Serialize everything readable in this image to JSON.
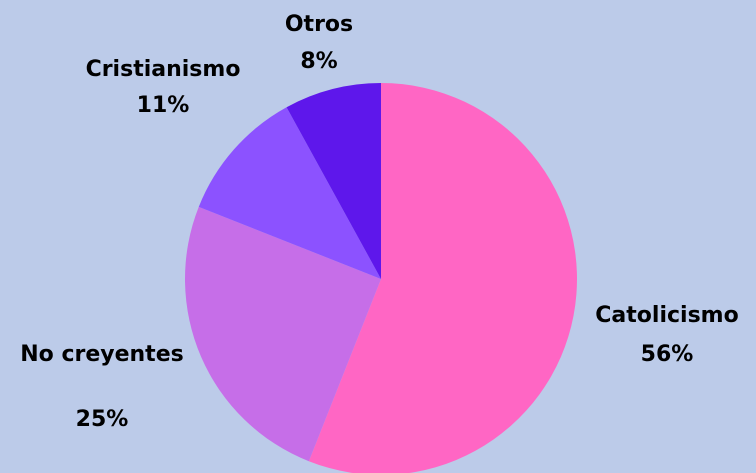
{
  "chart_data": {
    "type": "pie",
    "categories": [
      "Catolicismo",
      "No creyentes",
      "Cristianismo",
      "Otros"
    ],
    "values": [
      56,
      25,
      11,
      8
    ],
    "value_labels": [
      "56%",
      "25%",
      "11%",
      "8%"
    ],
    "colors": [
      "#ff66c4",
      "#c66ee8",
      "#8c52ff",
      "#5e17eb"
    ],
    "background": "#bccbe9"
  }
}
